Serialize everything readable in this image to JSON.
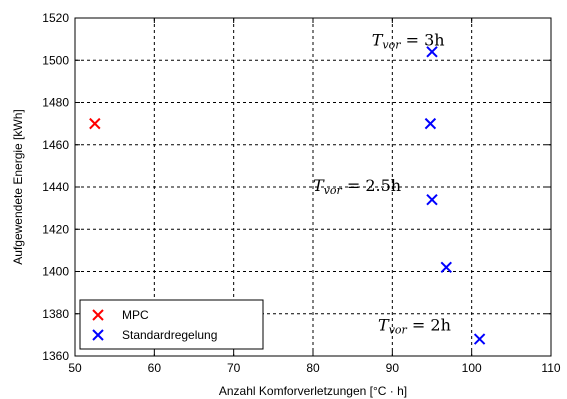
{
  "chart_data": {
    "type": "scatter",
    "xlabel": "Anzahl Komforverletzungen [°C · h]",
    "ylabel": "Aufgewendete Energie [kWh]",
    "xlim": [
      50,
      110
    ],
    "ylim": [
      1360,
      1520
    ],
    "xticks": [
      50,
      60,
      70,
      80,
      90,
      100,
      110
    ],
    "yticks": [
      1360,
      1380,
      1400,
      1420,
      1440,
      1460,
      1480,
      1500,
      1520
    ],
    "grid": true,
    "legend_position": "bottom-left",
    "series": [
      {
        "name": "MPC",
        "color": "#ff0000",
        "marker": "x",
        "points": [
          {
            "x": 52.5,
            "y": 1470
          }
        ]
      },
      {
        "name": "Standardregelung",
        "color": "#0000ff",
        "marker": "x",
        "points": [
          {
            "x": 95.0,
            "y": 1504
          },
          {
            "x": 94.8,
            "y": 1470
          },
          {
            "x": 95.0,
            "y": 1434
          },
          {
            "x": 96.8,
            "y": 1402
          },
          {
            "x": 101.0,
            "y": 1368
          }
        ]
      }
    ],
    "annotations": [
      {
        "text": "T_vor = 3h",
        "x": 87.4,
        "y": 1507
      },
      {
        "text": "T_vor = 2.5h",
        "x": 80.0,
        "y": 1438
      },
      {
        "text": "T_vor = 2h",
        "x": 88.2,
        "y": 1372
      }
    ]
  }
}
